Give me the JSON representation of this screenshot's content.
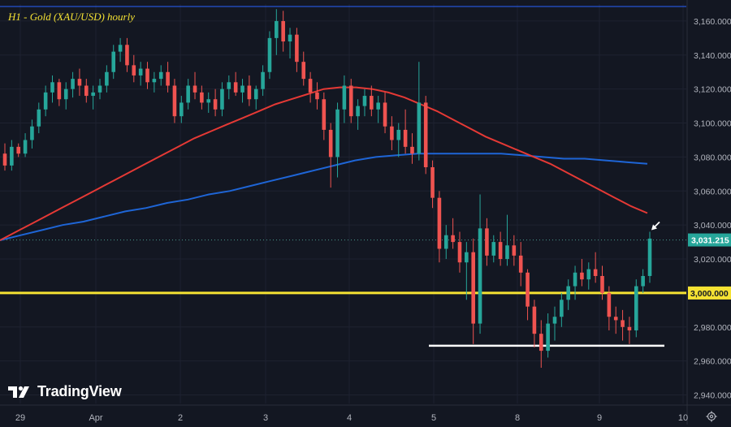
{
  "title": "H1 - Gold (XAU/USD) hourly",
  "brand": {
    "name": "TradingView",
    "logo_icon": "tradingview-logo-icon"
  },
  "toolbar": {
    "settings_icon": "gear-icon"
  },
  "colors": {
    "background": "#131722",
    "up_candle": "#26a69a",
    "down_candle": "#ef5350",
    "ma_fast": "#e53935",
    "ma_slow": "#1e65d6",
    "support_line": "#f5e233",
    "floor_line": "#ffffff",
    "top_line": "#2962ff",
    "price_badge": "#26a69a",
    "title_color": "#f5e233",
    "axis_text": "#b2b5be"
  },
  "chart_data": {
    "type": "candlestick",
    "title": "H1 - Gold (XAU/USD) hourly",
    "xlabel": "",
    "ylabel": "",
    "y_axis_side": "right",
    "ylim": [
      2935,
      3170
    ],
    "y_ticks": [
      2940,
      2960,
      2980,
      3000,
      3020,
      3040,
      3060,
      3080,
      3100,
      3120,
      3140,
      3160
    ],
    "y_tick_labels": [
      "2,940.000",
      "2,960.000",
      "2,980.000",
      "3,000.000",
      "3,020.000",
      "3,040.000",
      "3,060.000",
      "3,080.000",
      "3,100.000",
      "3,120.000",
      "3,140.000",
      "3,160.000"
    ],
    "x_tick_labels": [
      "29",
      "Apr",
      "2",
      "3",
      "4",
      "5",
      "8",
      "9",
      "10"
    ],
    "grid": true,
    "current_price": 3031.215,
    "current_price_label": "3,031.215",
    "horizontal_levels": [
      {
        "value": 3000.0,
        "label": "3,000.000",
        "style": "thick-yellow"
      },
      {
        "value": 2969.0,
        "style": "white-segment"
      },
      {
        "value": 3167.0,
        "style": "blue-top-line"
      }
    ],
    "ohlc": [
      [
        3082,
        3088,
        3072,
        3075
      ],
      [
        3075,
        3090,
        3072,
        3086
      ],
      [
        3086,
        3088,
        3080,
        3082
      ],
      [
        3082,
        3094,
        3080,
        3090
      ],
      [
        3090,
        3102,
        3085,
        3098
      ],
      [
        3098,
        3112,
        3094,
        3108
      ],
      [
        3108,
        3122,
        3104,
        3118
      ],
      [
        3118,
        3128,
        3112,
        3124
      ],
      [
        3124,
        3126,
        3110,
        3114
      ],
      [
        3114,
        3124,
        3108,
        3120
      ],
      [
        3120,
        3130,
        3115,
        3126
      ],
      [
        3126,
        3132,
        3116,
        3122
      ],
      [
        3122,
        3126,
        3112,
        3116
      ],
      [
        3116,
        3122,
        3108,
        3118
      ],
      [
        3118,
        3126,
        3114,
        3122
      ],
      [
        3122,
        3134,
        3118,
        3130
      ],
      [
        3130,
        3146,
        3126,
        3142
      ],
      [
        3142,
        3150,
        3136,
        3146
      ],
      [
        3146,
        3150,
        3130,
        3134
      ],
      [
        3134,
        3140,
        3124,
        3128
      ],
      [
        3128,
        3136,
        3122,
        3132
      ],
      [
        3132,
        3136,
        3120,
        3124
      ],
      [
        3124,
        3130,
        3118,
        3126
      ],
      [
        3126,
        3134,
        3122,
        3130
      ],
      [
        3130,
        3136,
        3118,
        3122
      ],
      [
        3122,
        3126,
        3100,
        3104
      ],
      [
        3104,
        3116,
        3100,
        3112
      ],
      [
        3112,
        3126,
        3108,
        3122
      ],
      [
        3122,
        3130,
        3114,
        3118
      ],
      [
        3118,
        3122,
        3108,
        3112
      ],
      [
        3112,
        3118,
        3106,
        3114
      ],
      [
        3114,
        3120,
        3104,
        3108
      ],
      [
        3108,
        3124,
        3104,
        3120
      ],
      [
        3120,
        3128,
        3114,
        3124
      ],
      [
        3124,
        3130,
        3116,
        3118
      ],
      [
        3118,
        3126,
        3112,
        3122
      ],
      [
        3122,
        3128,
        3110,
        3114
      ],
      [
        3114,
        3122,
        3108,
        3120
      ],
      [
        3120,
        3134,
        3116,
        3130
      ],
      [
        3130,
        3154,
        3126,
        3150
      ],
      [
        3150,
        3167,
        3140,
        3160
      ],
      [
        3160,
        3166,
        3142,
        3148
      ],
      [
        3148,
        3156,
        3138,
        3152
      ],
      [
        3152,
        3156,
        3130,
        3136
      ],
      [
        3136,
        3142,
        3122,
        3126
      ],
      [
        3126,
        3130,
        3112,
        3118
      ],
      [
        3118,
        3124,
        3108,
        3114
      ],
      [
        3114,
        3118,
        3090,
        3096
      ],
      [
        3096,
        3100,
        3062,
        3080
      ],
      [
        3080,
        3112,
        3068,
        3108
      ],
      [
        3108,
        3128,
        3100,
        3122
      ],
      [
        3122,
        3126,
        3100,
        3104
      ],
      [
        3104,
        3114,
        3096,
        3110
      ],
      [
        3110,
        3120,
        3104,
        3116
      ],
      [
        3116,
        3122,
        3104,
        3108
      ],
      [
        3108,
        3116,
        3100,
        3112
      ],
      [
        3112,
        3118,
        3094,
        3098
      ],
      [
        3098,
        3104,
        3084,
        3090
      ],
      [
        3090,
        3100,
        3080,
        3096
      ],
      [
        3096,
        3108,
        3082,
        3086
      ],
      [
        3086,
        3094,
        3076,
        3082
      ],
      [
        3082,
        3136,
        3078,
        3112
      ],
      [
        3112,
        3116,
        3070,
        3074
      ],
      [
        3074,
        3078,
        3050,
        3056
      ],
      [
        3056,
        3060,
        3018,
        3026
      ],
      [
        3026,
        3040,
        3020,
        3034
      ],
      [
        3034,
        3044,
        3026,
        3030
      ],
      [
        3030,
        3036,
        3012,
        3018
      ],
      [
        3018,
        3030,
        2996,
        3024
      ],
      [
        3024,
        3032,
        2970,
        2982
      ],
      [
        2982,
        3058,
        2976,
        3038
      ],
      [
        3038,
        3044,
        3016,
        3022
      ],
      [
        3022,
        3034,
        3018,
        3030
      ],
      [
        3030,
        3036,
        3016,
        3020
      ],
      [
        3020,
        3046,
        3016,
        3028
      ],
      [
        3028,
        3034,
        3016,
        3022
      ],
      [
        3022,
        3030,
        3004,
        3012
      ],
      [
        3012,
        3014,
        2984,
        2992
      ],
      [
        2992,
        2996,
        2968,
        2976
      ],
      [
        2976,
        2984,
        2956,
        2966
      ],
      [
        2966,
        2988,
        2962,
        2982
      ],
      [
        2982,
        2992,
        2972,
        2986
      ],
      [
        2986,
        3000,
        2980,
        2996
      ],
      [
        2996,
        3008,
        2990,
        3004
      ],
      [
        3004,
        3016,
        2996,
        3012
      ],
      [
        3012,
        3020,
        3004,
        3008
      ],
      [
        3008,
        3018,
        3002,
        3014
      ],
      [
        3014,
        3024,
        3006,
        3010
      ],
      [
        3010,
        3016,
        2996,
        3000
      ],
      [
        3000,
        3004,
        2978,
        2986
      ],
      [
        2986,
        2992,
        2976,
        2984
      ],
      [
        2984,
        2990,
        2972,
        2980
      ],
      [
        2980,
        2986,
        2970,
        2978
      ],
      [
        2978,
        3008,
        2974,
        3004
      ],
      [
        3004,
        3014,
        3000,
        3010
      ],
      [
        3010,
        3036,
        3006,
        3032
      ]
    ],
    "ma_fast": [
      3031,
      3036,
      3041,
      3046,
      3051,
      3056,
      3061,
      3066,
      3071,
      3076,
      3081,
      3086,
      3091,
      3095,
      3099,
      3103,
      3107,
      3111,
      3114,
      3117,
      3120,
      3121,
      3121,
      3120,
      3118,
      3115,
      3111,
      3107,
      3102,
      3097,
      3092,
      3088,
      3084,
      3080,
      3076,
      3071,
      3066,
      3061,
      3056,
      3051,
      3047
    ],
    "ma_slow": [
      3031,
      3034,
      3037,
      3040,
      3042,
      3045,
      3048,
      3050,
      3053,
      3055,
      3058,
      3060,
      3063,
      3066,
      3069,
      3072,
      3075,
      3078,
      3080,
      3081,
      3082,
      3082,
      3082,
      3082,
      3082,
      3081,
      3080,
      3079,
      3079,
      3078,
      3077,
      3076
    ],
    "annotations": [
      {
        "type": "arrow",
        "label": "",
        "points_to": "last-candle"
      }
    ]
  }
}
